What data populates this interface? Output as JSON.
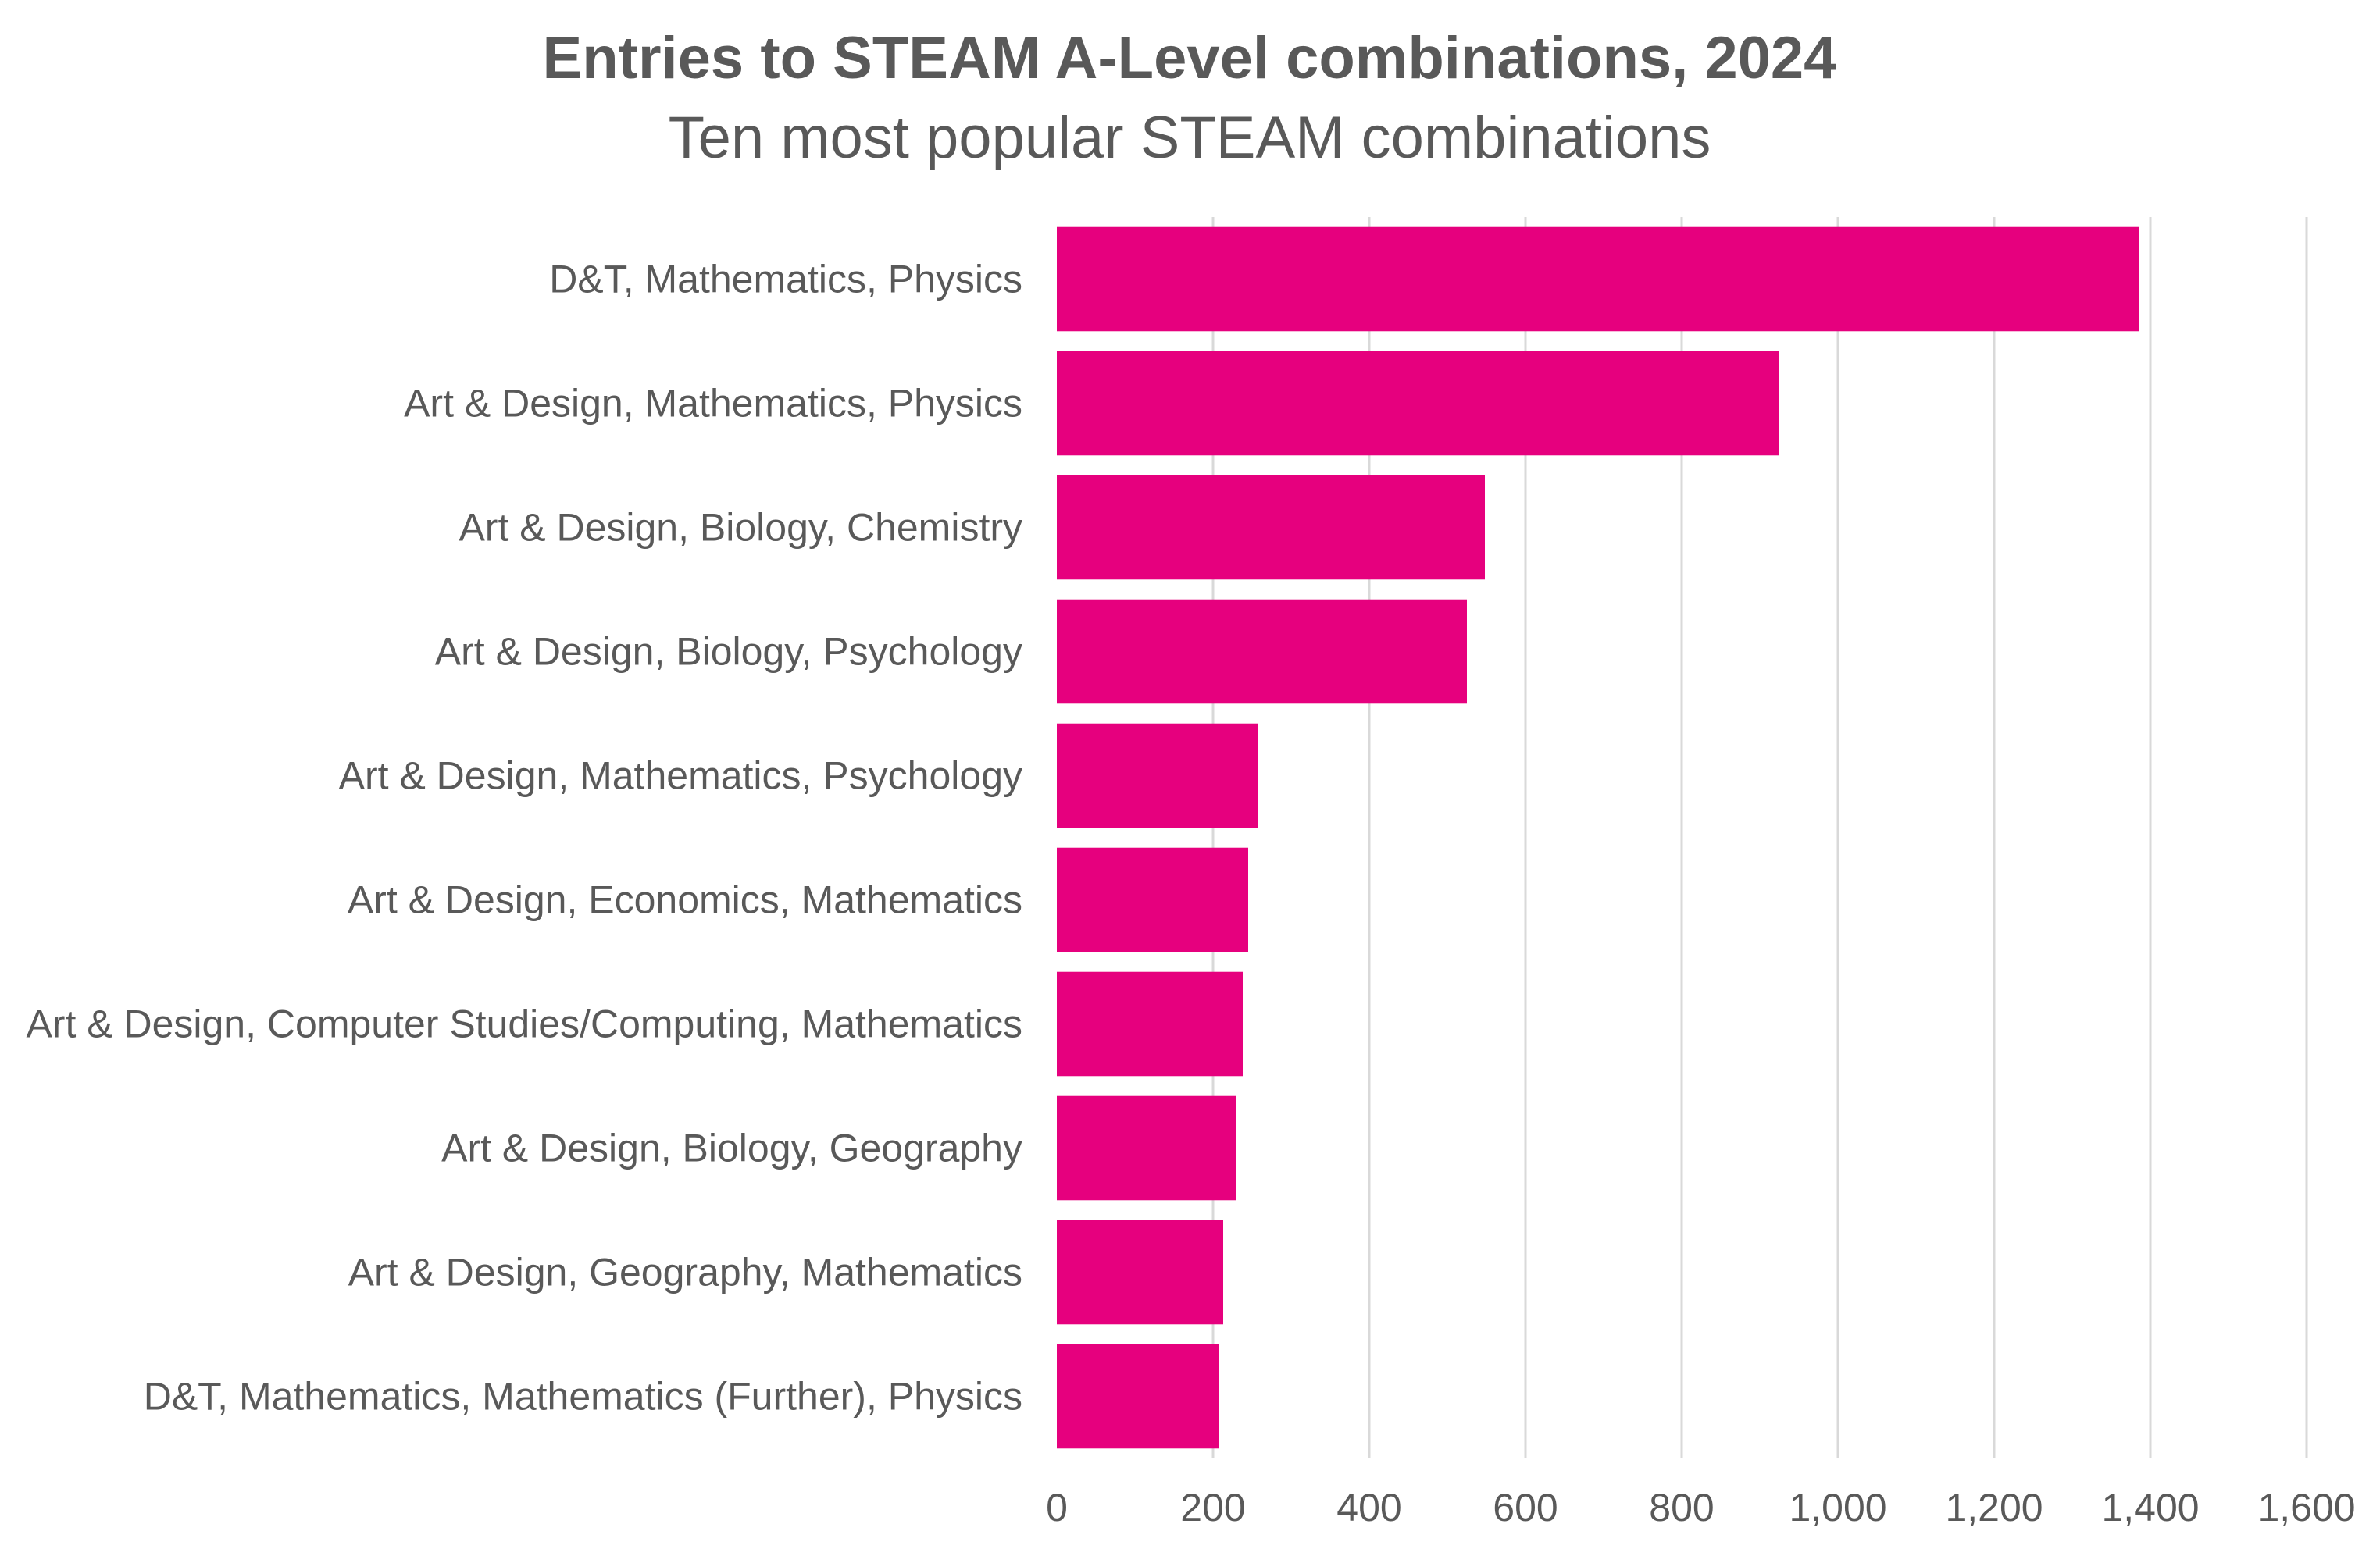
{
  "chart_data": {
    "type": "bar",
    "orientation": "horizontal",
    "title": "Entries to STEAM A-Level combinations, 2024",
    "subtitle": "Ten most popular STEAM combinations",
    "xlabel": "",
    "ylabel": "",
    "xlim": [
      0,
      1600
    ],
    "x_ticks": [
      0,
      200,
      400,
      600,
      800,
      1000,
      1200,
      1400,
      1600
    ],
    "x_tick_labels": [
      "0",
      "200",
      "400",
      "600",
      "800",
      "1,000",
      "1,200",
      "1,400",
      "1,600"
    ],
    "grid": "vertical",
    "legend": "none",
    "bar_color": "#E6007E",
    "text_color": "#595959",
    "grid_color": "#D9D9D9",
    "categories": [
      "D&T, Mathematics, Physics",
      "Art & Design, Mathematics, Physics",
      "Art & Design, Biology, Chemistry",
      "Art & Design, Biology, Psychology",
      "Art & Design, Mathematics, Psychology",
      "Art & Design, Economics, Mathematics",
      "Art & Design, Computer Studies/Computing, Mathematics",
      "Art & Design, Biology, Geography",
      "Art & Design, Geography, Mathematics",
      "D&T, Mathematics, Mathematics (Further), Physics"
    ],
    "values": [
      1385,
      925,
      548,
      525,
      258,
      245,
      238,
      230,
      213,
      207
    ]
  }
}
